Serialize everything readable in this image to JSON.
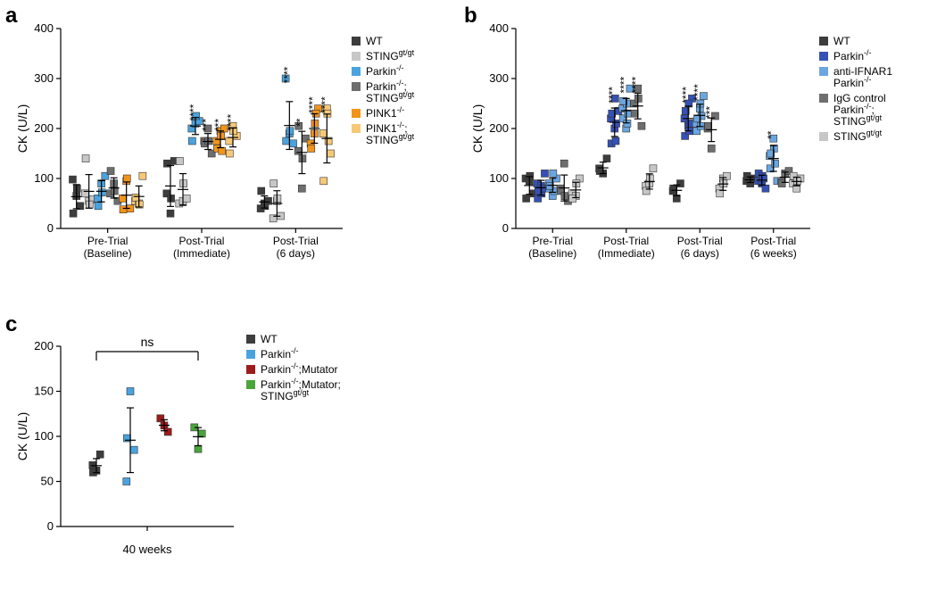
{
  "panelA": {
    "label": "a",
    "type": "scatter-categorical",
    "ylabel": "CK (U/L)",
    "ylim": [
      0,
      400
    ],
    "ytick_step": 100,
    "label_fontsize": 14,
    "tick_fontsize": 12,
    "background_color": "#ffffff",
    "marker_size": 8,
    "xcats": [
      "Pre-Trial\n(Baseline)",
      "Post-Trial\n(Immediate)",
      "Post-Trial\n(6 days)"
    ],
    "groups": [
      {
        "name": "WT",
        "color": "#3d3d3d"
      },
      {
        "name": "STINGgt/gt",
        "color": "#c7c7c7"
      },
      {
        "name": "Parkin-/-",
        "color": "#4aa3df"
      },
      {
        "name": "Parkin-/-;\n  STINGgt/gt",
        "color": "#6e6e6e"
      },
      {
        "name": "PINK1-/-",
        "color": "#f2941a"
      },
      {
        "name": "PINK1-/-;\n  STINGgt/gt",
        "color": "#f7c977"
      }
    ],
    "data": [
      [
        [
          98,
          65,
          45,
          30,
          80
        ],
        [
          70,
          55,
          58,
          140,
          48
        ],
        [
          60,
          90,
          105,
          45,
          72
        ],
        [
          70,
          90,
          55,
          115,
          75
        ],
        [
          60,
          95,
          40,
          38,
          100
        ],
        [
          55,
          50,
          105,
          62,
          48
        ]
      ],
      [
        [
          70,
          30,
          135,
          130,
          60
        ],
        [
          50,
          55,
          60,
          135,
          90
        ],
        [
          200,
          210,
          215,
          175,
          225
        ],
        [
          175,
          200,
          150,
          170,
          175
        ],
        [
          175,
          195,
          200,
          160,
          185,
          155
        ],
        [
          175,
          205,
          185,
          150,
          195
        ]
      ],
      [
        [
          40,
          50,
          55,
          75,
          45
        ],
        [
          20,
          55,
          25,
          90,
          60
        ],
        [
          300,
          190,
          170,
          175,
          195
        ],
        [
          155,
          80,
          180,
          205,
          140
        ],
        [
          170,
          190,
          240,
          160,
          210,
          230
        ],
        [
          190,
          240,
          150,
          95,
          230,
          175
        ]
      ]
    ],
    "sig": [
      [
        null,
        null,
        null,
        null,
        null,
        null
      ],
      [
        null,
        null,
        "****",
        "***",
        "***",
        "****"
      ],
      [
        null,
        null,
        "****",
        "**",
        "****",
        "****"
      ]
    ]
  },
  "panelB": {
    "label": "b",
    "type": "scatter-categorical",
    "ylabel": "CK (U/L)",
    "ylim": [
      0,
      400
    ],
    "ytick_step": 100,
    "label_fontsize": 14,
    "tick_fontsize": 12,
    "background_color": "#ffffff",
    "marker_size": 8,
    "xcats": [
      "Pre-Trial\n(Baseline)",
      "Post-Trial\n(Immediate)",
      "Post-Trial\n(6 days)",
      "Post-Trial\n(6 weeks)"
    ],
    "groups": [
      {
        "name": "WT",
        "color": "#3d3d3d"
      },
      {
        "name": "Parkin-/-",
        "color": "#3551b5"
      },
      {
        "name": "anti-IFNAR1\n  Parkin-/-",
        "color": "#6aa6e0"
      },
      {
        "name": "IgG control\n  Parkin-/-;\n  STINGgt/gt",
        "color": "#6e6e6e"
      },
      {
        "name": "STINGgt/gt",
        "color": "#c7c7c7"
      }
    ],
    "data": [
      [
        [
          100,
          95,
          70,
          60,
          105
        ],
        [
          90,
          85,
          110,
          60,
          70,
          80,
          75
        ],
        [
          90,
          65,
          100,
          80,
          110,
          75,
          85
        ],
        [
          80,
          130,
          55,
          75,
          65
        ],
        [
          70,
          65,
          100,
          60,
          90
        ]
      ],
      [
        [
          120,
          110,
          140,
          115
        ],
        [
          220,
          200,
          235,
          170,
          260,
          210,
          230,
          175
        ],
        [
          240,
          200,
          280,
          220,
          250,
          230,
          255,
          210
        ],
        [
          250,
          280,
          205,
          230,
          260
        ],
        [
          85,
          90,
          120,
          75,
          100
        ]
      ],
      [
        [
          75,
          60,
          90,
          80
        ],
        [
          220,
          205,
          260,
          185,
          250,
          210,
          235,
          195
        ],
        [
          210,
          240,
          265,
          195,
          250,
          225,
          220,
          205
        ],
        [
          200,
          160,
          225,
          205
        ],
        [
          80,
          100,
          105,
          70,
          90
        ]
      ],
      [
        [
          95,
          90,
          100,
          105
        ],
        [
          95,
          90,
          80,
          110,
          105,
          100
        ],
        [
          145,
          180,
          95,
          120,
          160,
          130,
          150
        ],
        [
          95,
          110,
          115,
          90
        ],
        [
          90,
          80,
          100,
          105,
          95
        ]
      ]
    ],
    "sig": [
      [
        null,
        null,
        null,
        null,
        null
      ],
      [
        null,
        "****",
        "****",
        "****",
        null
      ],
      [
        null,
        "****",
        "****",
        "***",
        null
      ],
      [
        null,
        null,
        "**",
        null,
        null
      ]
    ]
  },
  "panelC": {
    "label": "c",
    "type": "scatter-categorical",
    "ylabel": "CK (U/L)",
    "ylim": [
      0,
      200
    ],
    "ytick_step": 50,
    "label_fontsize": 14,
    "tick_fontsize": 12,
    "background_color": "#ffffff",
    "marker_size": 8,
    "xcat": "40 weeks",
    "ns_label": "ns",
    "groups": [
      {
        "name": "WT",
        "color": "#3d3d3d"
      },
      {
        "name": "Parkin-/-",
        "color": "#4aa3df"
      },
      {
        "name": "Parkin-/-;Mutator",
        "color": "#9e1b1b"
      },
      {
        "name": "Parkin-/-;Mutator;\n  STINGgt/gt",
        "color": "#4aa53a"
      }
    ],
    "data": [
      [
        68,
        62,
        80,
        60
      ],
      [
        50,
        150,
        85,
        98
      ],
      [
        120,
        112,
        105
      ],
      [
        110,
        86,
        103
      ]
    ]
  }
}
